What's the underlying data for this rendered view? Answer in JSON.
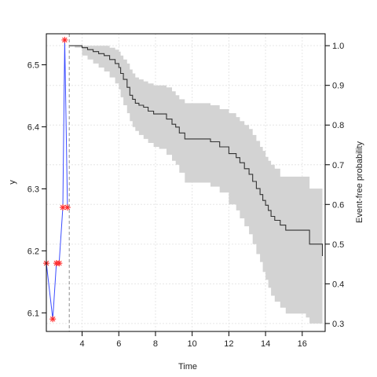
{
  "chart_data": [
    {
      "type": "line",
      "title": "",
      "xlabel": "",
      "ylabel": "y",
      "ylim": [
        6.07,
        6.55
      ],
      "yticks": [
        6.1,
        6.2,
        6.3,
        6.4,
        6.5
      ],
      "ytick_labels": [
        "6.1",
        "6.2",
        "6.3",
        "6.4",
        "6.5"
      ],
      "grid": true,
      "series": [
        {
          "marker": "asterisk",
          "line_color": "#3b4cff",
          "marker_color": "#ff2a2a",
          "points": [
            [
              2.05,
              6.18
            ],
            [
              2.4,
              6.09
            ],
            [
              2.6,
              6.18
            ],
            [
              2.75,
              6.18
            ],
            [
              2.95,
              6.27
            ],
            [
              3.05,
              6.54
            ],
            [
              3.2,
              6.27
            ]
          ]
        }
      ]
    },
    {
      "type": "line",
      "title": "",
      "xlabel": "Time",
      "ylabel": "Event-free probability",
      "xlim": [
        2.05,
        17.25
      ],
      "xticks": [
        4,
        6,
        8,
        10,
        12,
        14,
        16
      ],
      "xtick_labels": [
        "4",
        "6",
        "8",
        "10",
        "12",
        "14",
        "16"
      ],
      "ylim": [
        0.28,
        1.03
      ],
      "yticks": [
        0.3,
        0.4,
        0.5,
        0.6,
        0.7,
        0.8,
        0.9,
        1.0
      ],
      "ytick_labels": [
        "0.3",
        "0.4",
        "0.5",
        "0.6",
        "0.7",
        "0.8",
        "0.9",
        "1.0"
      ],
      "grid": true,
      "landmark_time": 3.3,
      "series": [
        {
          "style": "step",
          "line_color": "#333333",
          "band_color": "#d3d3d3",
          "points": [
            [
              3.3,
              1.0
            ],
            [
              3.6,
              1.0
            ],
            [
              4.0,
              0.995
            ],
            [
              4.3,
              0.99
            ],
            [
              4.6,
              0.985
            ],
            [
              4.9,
              0.98
            ],
            [
              5.2,
              0.975
            ],
            [
              5.5,
              0.965
            ],
            [
              5.8,
              0.955
            ],
            [
              6.0,
              0.945
            ],
            [
              6.1,
              0.93
            ],
            [
              6.25,
              0.915
            ],
            [
              6.45,
              0.895
            ],
            [
              6.6,
              0.875
            ],
            [
              6.75,
              0.865
            ],
            [
              6.9,
              0.855
            ],
            [
              7.1,
              0.85
            ],
            [
              7.35,
              0.845
            ],
            [
              7.6,
              0.835
            ],
            [
              7.9,
              0.828
            ],
            [
              8.2,
              0.828
            ],
            [
              8.6,
              0.815
            ],
            [
              8.9,
              0.802
            ],
            [
              9.1,
              0.795
            ],
            [
              9.3,
              0.78
            ],
            [
              9.6,
              0.765
            ],
            [
              10.5,
              0.765
            ],
            [
              11.0,
              0.758
            ],
            [
              11.5,
              0.745
            ],
            [
              12.0,
              0.728
            ],
            [
              12.4,
              0.718
            ],
            [
              12.6,
              0.705
            ],
            [
              12.85,
              0.69
            ],
            [
              13.1,
              0.676
            ],
            [
              13.3,
              0.658
            ],
            [
              13.5,
              0.64
            ],
            [
              13.7,
              0.625
            ],
            [
              13.85,
              0.61
            ],
            [
              14.0,
              0.598
            ],
            [
              14.15,
              0.585
            ],
            [
              14.3,
              0.57
            ],
            [
              14.5,
              0.56
            ],
            [
              14.8,
              0.548
            ],
            [
              15.1,
              0.535
            ],
            [
              16.2,
              0.535
            ],
            [
              16.4,
              0.5
            ],
            [
              16.8,
              0.5
            ],
            [
              17.1,
              0.47
            ]
          ],
          "lower": [
            [
              3.3,
              1.0
            ],
            [
              3.6,
              0.995
            ],
            [
              4.0,
              0.975
            ],
            [
              4.3,
              0.965
            ],
            [
              4.6,
              0.955
            ],
            [
              4.9,
              0.945
            ],
            [
              5.2,
              0.935
            ],
            [
              5.5,
              0.92
            ],
            [
              5.8,
              0.905
            ],
            [
              6.0,
              0.89
            ],
            [
              6.1,
              0.87
            ],
            [
              6.25,
              0.85
            ],
            [
              6.45,
              0.83
            ],
            [
              6.6,
              0.81
            ],
            [
              6.75,
              0.795
            ],
            [
              6.9,
              0.785
            ],
            [
              7.1,
              0.775
            ],
            [
              7.35,
              0.765
            ],
            [
              7.6,
              0.755
            ],
            [
              7.9,
              0.745
            ],
            [
              8.2,
              0.74
            ],
            [
              8.6,
              0.725
            ],
            [
              8.9,
              0.71
            ],
            [
              9.1,
              0.7
            ],
            [
              9.3,
              0.68
            ],
            [
              9.6,
              0.655
            ],
            [
              10.5,
              0.655
            ],
            [
              11.0,
              0.645
            ],
            [
              11.5,
              0.63
            ],
            [
              12.0,
              0.6
            ],
            [
              12.4,
              0.585
            ],
            [
              12.6,
              0.565
            ],
            [
              12.85,
              0.545
            ],
            [
              13.1,
              0.525
            ],
            [
              13.3,
              0.5
            ],
            [
              13.5,
              0.475
            ],
            [
              13.7,
              0.455
            ],
            [
              13.85,
              0.43
            ],
            [
              14.0,
              0.41
            ],
            [
              14.15,
              0.39
            ],
            [
              14.3,
              0.37
            ],
            [
              14.5,
              0.355
            ],
            [
              14.8,
              0.34
            ],
            [
              15.1,
              0.325
            ],
            [
              16.2,
              0.315
            ],
            [
              16.4,
              0.3
            ],
            [
              16.8,
              0.3
            ],
            [
              17.1,
              0.3
            ]
          ],
          "upper": [
            [
              3.3,
              1.0
            ],
            [
              3.6,
              1.0
            ],
            [
              4.0,
              1.0
            ],
            [
              4.3,
              1.0
            ],
            [
              4.6,
              1.0
            ],
            [
              4.9,
              1.0
            ],
            [
              5.2,
              1.0
            ],
            [
              5.5,
              0.995
            ],
            [
              5.8,
              0.99
            ],
            [
              6.0,
              0.985
            ],
            [
              6.1,
              0.975
            ],
            [
              6.25,
              0.965
            ],
            [
              6.45,
              0.955
            ],
            [
              6.6,
              0.94
            ],
            [
              6.75,
              0.93
            ],
            [
              6.9,
              0.92
            ],
            [
              7.1,
              0.915
            ],
            [
              7.35,
              0.91
            ],
            [
              7.6,
              0.905
            ],
            [
              7.9,
              0.9
            ],
            [
              8.2,
              0.9
            ],
            [
              8.6,
              0.895
            ],
            [
              8.9,
              0.885
            ],
            [
              9.1,
              0.875
            ],
            [
              9.3,
              0.865
            ],
            [
              9.6,
              0.855
            ],
            [
              10.5,
              0.855
            ],
            [
              11.0,
              0.85
            ],
            [
              11.5,
              0.84
            ],
            [
              12.0,
              0.83
            ],
            [
              12.4,
              0.82
            ],
            [
              12.6,
              0.81
            ],
            [
              12.85,
              0.8
            ],
            [
              13.1,
              0.79
            ],
            [
              13.3,
              0.775
            ],
            [
              13.5,
              0.76
            ],
            [
              13.7,
              0.745
            ],
            [
              13.85,
              0.735
            ],
            [
              14.0,
              0.72
            ],
            [
              14.15,
              0.71
            ],
            [
              14.3,
              0.7
            ],
            [
              14.5,
              0.69
            ],
            [
              14.8,
              0.67
            ],
            [
              15.1,
              0.67
            ],
            [
              16.2,
              0.67
            ],
            [
              16.4,
              0.64
            ],
            [
              16.8,
              0.64
            ],
            [
              17.1,
              0.64
            ]
          ]
        }
      ]
    }
  ]
}
